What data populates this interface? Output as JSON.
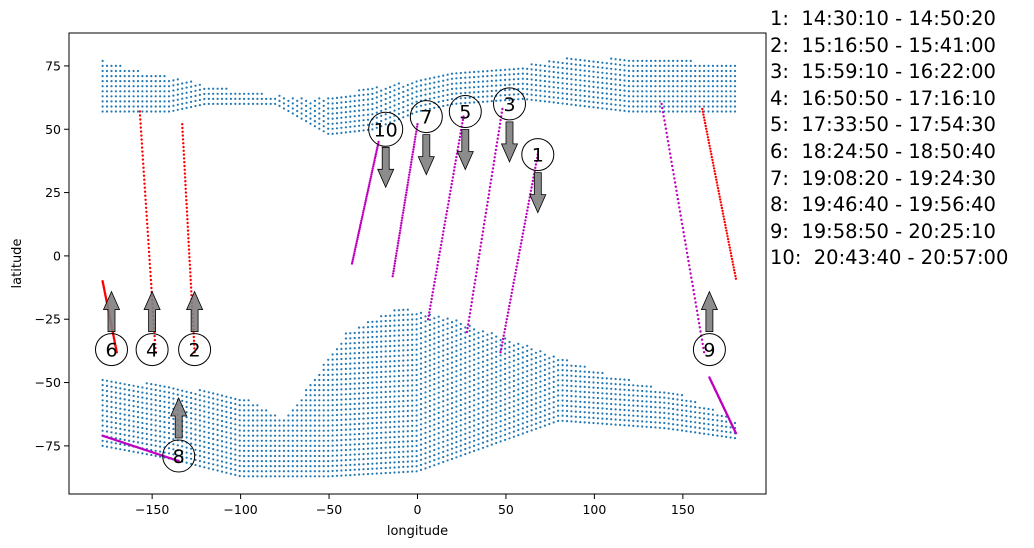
{
  "chart_data": {
    "type": "scatter",
    "title": "",
    "xlabel": "longitude",
    "ylabel": "latitude",
    "xlim": [
      -197,
      197
    ],
    "ylim": [
      -94,
      88
    ],
    "xticks": [
      -150,
      -100,
      -50,
      0,
      50,
      100,
      150
    ],
    "yticks": [
      75,
      50,
      25,
      0,
      -25,
      -50,
      -75
    ],
    "grid": false,
    "colors": {
      "land": "#1f77b4",
      "track_day": "#ff0000",
      "track_night": "#bf00bf",
      "arrow": "#808080",
      "circle": "#000000"
    },
    "land_regions": [
      {
        "region": "north",
        "lon": [
          -178,
          180
        ],
        "lat_south_edge": [
          [
            -178,
            57
          ],
          [
            -140,
            57
          ],
          [
            -120,
            60
          ],
          [
            -80,
            60
          ],
          [
            -50,
            48
          ],
          [
            -25,
            50
          ],
          [
            0,
            57
          ],
          [
            20,
            60
          ],
          [
            60,
            62
          ],
          [
            120,
            57
          ],
          [
            180,
            57
          ]
        ],
        "lat_north_edge": [
          [
            -178,
            77
          ],
          [
            -150,
            72
          ],
          [
            -100,
            65
          ],
          [
            -60,
            62
          ],
          [
            -20,
            67
          ],
          [
            20,
            72
          ],
          [
            50,
            74
          ],
          [
            80,
            78
          ],
          [
            130,
            78
          ],
          [
            180,
            76
          ]
        ]
      },
      {
        "region": "south",
        "lon": [
          -178,
          180
        ],
        "lat_north_edge": [
          [
            -178,
            -48
          ],
          [
            -100,
            -55
          ],
          [
            -75,
            -65
          ],
          [
            -40,
            -30
          ],
          [
            -10,
            -20
          ],
          [
            20,
            -25
          ],
          [
            60,
            -35
          ],
          [
            100,
            -45
          ],
          [
            150,
            -55
          ],
          [
            180,
            -65
          ]
        ],
        "lat_south_edge": [
          [
            -178,
            -75
          ],
          [
            -140,
            -80
          ],
          [
            -100,
            -87
          ],
          [
            -50,
            -87
          ],
          [
            0,
            -85
          ],
          [
            40,
            -75
          ],
          [
            80,
            -65
          ],
          [
            140,
            -68
          ],
          [
            180,
            -72
          ]
        ]
      }
    ],
    "tracks": [
      {
        "id": 1,
        "label": "1",
        "time": "14:30:10 - 14:50:20",
        "lon": [
          47,
          68
        ],
        "lat": [
          -38,
          40
        ],
        "color": "night"
      },
      {
        "id": 2,
        "label": "2",
        "time": "15:16:50 - 15:41:00",
        "lon": [
          -133,
          -126
        ],
        "lat": [
          52,
          -38
        ],
        "color": "day"
      },
      {
        "id": 3,
        "label": "3",
        "time": "15:59:10 - 16:22:00",
        "lon": [
          28,
          48
        ],
        "lat": [
          -30,
          58
        ],
        "color": "night"
      },
      {
        "id": 4,
        "label": "4",
        "time": "16:50:50 - 17:16:10",
        "lon": [
          -157,
          -148
        ],
        "lat": [
          57,
          -38
        ],
        "color": "day"
      },
      {
        "id": 5,
        "label": "5",
        "time": "17:33:50 - 17:54:30",
        "lon": [
          6,
          26
        ],
        "lat": [
          -25,
          55
        ],
        "color": "night"
      },
      {
        "id": 6,
        "label": "6",
        "time": "18:24:50 - 18:50:40",
        "lon": [
          -178,
          -170
        ],
        "lat": [
          -10,
          -38
        ],
        "color": "day"
      },
      {
        "id": 7,
        "label": "7",
        "time": "19:08:20 - 19:24:30",
        "lon": [
          -14,
          0
        ],
        "lat": [
          -8,
          52
        ],
        "color": "night"
      },
      {
        "id": 8,
        "label": "8",
        "time": "19:46:40 - 19:56:40",
        "lon": [
          -178,
          -135
        ],
        "lat": [
          -71,
          -81
        ],
        "color": "night"
      },
      {
        "id": 9,
        "label": "9",
        "time": "19:58:50 - 20:25:10",
        "lon": [
          138,
          162
        ],
        "lat": [
          60,
          -38
        ],
        "color": "night"
      },
      {
        "id": 10,
        "label": "10",
        "time": "20:43:40 - 20:57:00",
        "lon": [
          -37,
          -22
        ],
        "lat": [
          -3,
          45
        ],
        "color": "night"
      }
    ],
    "extra_tracks": [
      {
        "lon": [
          161,
          180
        ],
        "lat": [
          58,
          -9
        ],
        "color": "day"
      },
      {
        "lon": [
          165,
          180
        ],
        "lat": [
          -48,
          -70
        ],
        "color": "night"
      }
    ],
    "annotations": [
      {
        "label": "1",
        "lon": 68,
        "lat": 40,
        "arrow": "down"
      },
      {
        "label": "2",
        "lon": -126,
        "lat": -37,
        "arrow": "up"
      },
      {
        "label": "3",
        "lon": 52,
        "lat": 60,
        "arrow": "down"
      },
      {
        "label": "4",
        "lon": -150,
        "lat": -37,
        "arrow": "up"
      },
      {
        "label": "5",
        "lon": 27,
        "lat": 57,
        "arrow": "down"
      },
      {
        "label": "6",
        "lon": -173,
        "lat": -37,
        "arrow": "up"
      },
      {
        "label": "7",
        "lon": 5,
        "lat": 55,
        "arrow": "down"
      },
      {
        "label": "8",
        "lon": -135,
        "lat": -79,
        "arrow": "up"
      },
      {
        "label": "9",
        "lon": 165,
        "lat": -37,
        "arrow": "up"
      },
      {
        "label": "10",
        "lon": -18,
        "lat": 50,
        "arrow": "down"
      }
    ],
    "legend": [
      "1:  14:30:10 - 14:50:20",
      "2:  15:16:50 - 15:41:00",
      "3:  15:59:10 - 16:22:00",
      "4:  16:50:50 - 17:16:10",
      "5:  17:33:50 - 17:54:30",
      "6:  18:24:50 - 18:50:40",
      "7:  19:08:20 - 19:24:30",
      "8:  19:46:40 - 19:56:40",
      "9:  19:58:50 - 20:25:10",
      "10:  20:43:40 - 20:57:00"
    ],
    "legend_placement": "right-outside"
  }
}
